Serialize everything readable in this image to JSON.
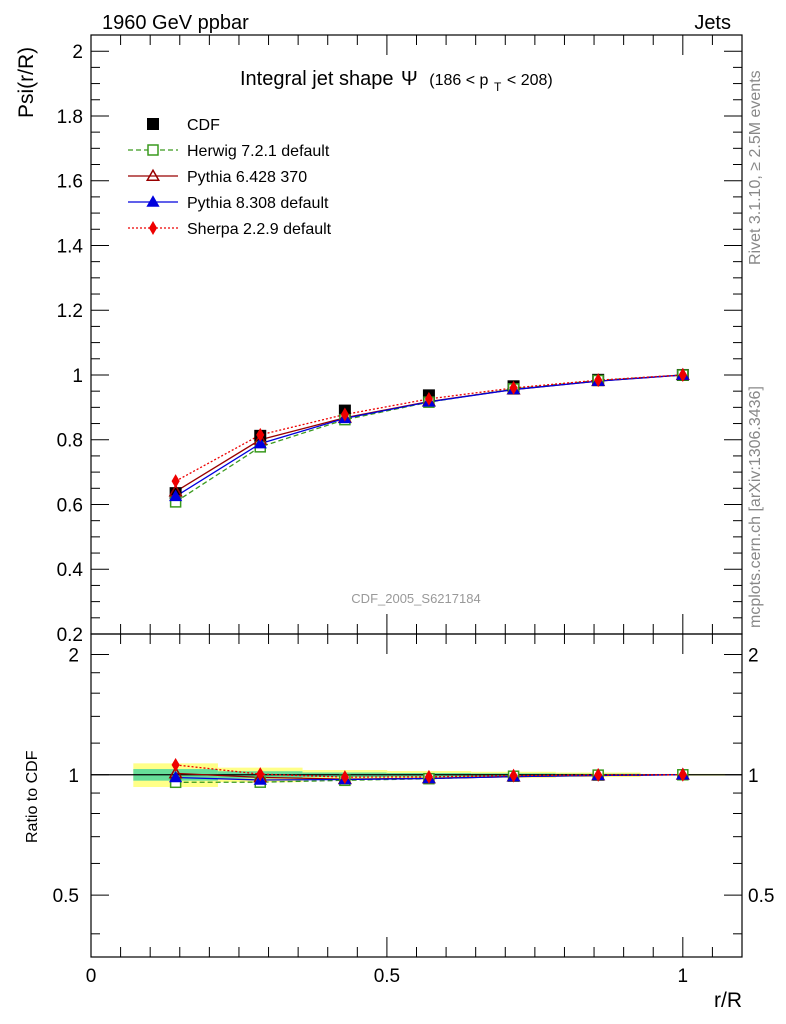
{
  "header": {
    "left": "1960 GeV ppbar",
    "right": "Jets",
    "side_top": "Rivet 3.1.10, ≥ 2.5M events",
    "side_bottom": "mcplots.cern.ch [arXiv:1306.3436]",
    "watermark": "CDF_2005_S6217184"
  },
  "chart_data": {
    "type": "line",
    "title": {
      "main": "Integral jet shape",
      "symbol": "Ψ",
      "range_open": "(186 < p",
      "range_sub": "T",
      "range_close": " < 208)"
    },
    "ylabel": "Psi(r/R)",
    "xlabel": "r/R",
    "ratio_ylabel": "Ratio to CDF",
    "xlim": [
      0,
      1.1
    ],
    "ylim": [
      0.2,
      2.05
    ],
    "ratio_ylim": [
      0.35,
      2.25
    ],
    "x_ticks": [
      0,
      0.5,
      1
    ],
    "x_tick_labels": [
      "0",
      "0.5",
      "1"
    ],
    "y_ticks": [
      0.2,
      0.4,
      0.6,
      0.8,
      1,
      1.2,
      1.4,
      1.6,
      1.8,
      2
    ],
    "y_tick_labels": [
      "0.2",
      "0.4",
      "0.6",
      "0.8",
      "1",
      "1.2",
      "1.4",
      "1.6",
      "1.8",
      "2"
    ],
    "ratio_ticks": [
      0.5,
      1,
      2
    ],
    "ratio_tick_labels": [
      "0.5",
      "1",
      "2"
    ],
    "x": [
      0.143,
      0.286,
      0.429,
      0.571,
      0.714,
      0.857,
      1.0
    ],
    "data": {
      "name": "CDF",
      "values": [
        0.635,
        0.812,
        0.89,
        0.937,
        0.965,
        0.985,
        1.0
      ],
      "errors": [
        0.02,
        0.015,
        0.01,
        0.008,
        0.006,
        0.004,
        0.0
      ],
      "color": "#000000"
    },
    "series": [
      {
        "name": "Herwig 7.2.1 default",
        "values": [
          0.608,
          0.778,
          0.862,
          0.916,
          0.957,
          0.983,
          1.0
        ],
        "color": "#3a9a1e",
        "dash": "5,3",
        "marker": "open-square"
      },
      {
        "name": "Pythia 6.428 370",
        "values": [
          0.64,
          0.8,
          0.868,
          0.918,
          0.955,
          0.981,
          1.0
        ],
        "color": "#990000",
        "dash": "",
        "marker": "open-triangle"
      },
      {
        "name": "Pythia 8.308 default",
        "values": [
          0.625,
          0.788,
          0.866,
          0.917,
          0.955,
          0.981,
          1.0
        ],
        "color": "#0000dd",
        "dash": "",
        "marker": "filled-triangle"
      },
      {
        "name": "Sherpa 2.2.9 default",
        "values": [
          0.672,
          0.815,
          0.878,
          0.926,
          0.96,
          0.984,
          1.0
        ],
        "color": "#ee0000",
        "dash": "2,2",
        "marker": "filled-diamond"
      }
    ],
    "band_colors": {
      "inner": "#66dd99",
      "outer": "#ffff88"
    }
  }
}
